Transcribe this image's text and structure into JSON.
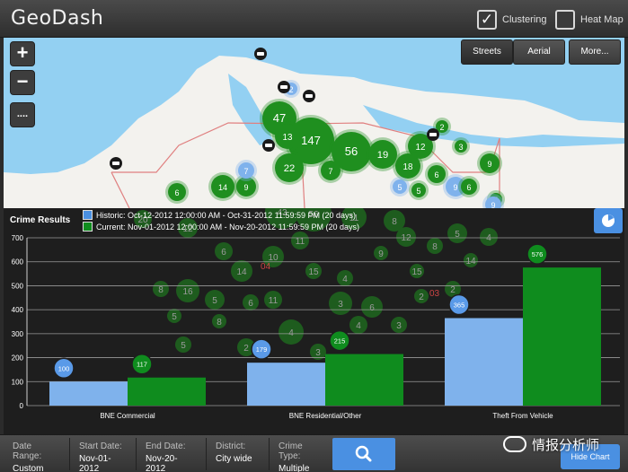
{
  "header": {
    "title": "GeoDash",
    "clustering_label": "Clustering",
    "clustering_checked": true,
    "clustering_mark": "✓",
    "heatmap_label": "Heat Map",
    "heatmap_checked": false
  },
  "map": {
    "zoom_in": "+",
    "zoom_out": "−",
    "measure": "....",
    "map_types": [
      "Streets",
      "Aerial",
      "More..."
    ],
    "active_map_type": "Streets",
    "district_labels": [
      "04",
      "03"
    ],
    "colors": {
      "water": "#93d0f2",
      "land": "#f3f2ee",
      "cluster_green": "#1f8f1f",
      "cluster_blue": "#7fb2ec",
      "district_border": "#e08080"
    },
    "clusters": [
      {
        "label": "47",
        "c": "g"
      },
      {
        "label": "147",
        "c": "g"
      },
      {
        "label": "13",
        "c": "g"
      },
      {
        "label": "56",
        "c": "g"
      },
      {
        "label": "19",
        "c": "g"
      },
      {
        "label": "12",
        "c": "g"
      },
      {
        "label": "22",
        "c": "g"
      },
      {
        "label": "7",
        "c": "g"
      },
      {
        "label": "18",
        "c": "g"
      },
      {
        "label": "14",
        "c": "g"
      },
      {
        "label": "9",
        "c": "g"
      },
      {
        "label": "7",
        "c": "b"
      },
      {
        "label": "6",
        "c": "g"
      },
      {
        "label": "6",
        "c": "g"
      },
      {
        "label": "9",
        "c": "b"
      },
      {
        "label": "9",
        "c": "g"
      },
      {
        "label": "6",
        "c": "g"
      },
      {
        "label": "5",
        "c": "g"
      },
      {
        "label": "4",
        "c": "g"
      },
      {
        "label": "2",
        "c": "g"
      },
      {
        "label": "3",
        "c": "g"
      },
      {
        "label": "5",
        "c": "b"
      },
      {
        "label": "2",
        "c": "b"
      },
      {
        "label": "9",
        "c": "b"
      },
      {
        "label": "20",
        "c": "g"
      },
      {
        "label": "12",
        "c": "g"
      },
      {
        "label": "43",
        "c": "g"
      },
      {
        "label": "56",
        "c": "g"
      },
      {
        "label": "11",
        "c": "g"
      },
      {
        "label": "8",
        "c": "g"
      },
      {
        "label": "5",
        "c": "g"
      },
      {
        "label": "6",
        "c": "g"
      },
      {
        "label": "10",
        "c": "g"
      },
      {
        "label": "11",
        "c": "g"
      },
      {
        "label": "14",
        "c": "g"
      },
      {
        "label": "16",
        "c": "g"
      },
      {
        "label": "8",
        "c": "g"
      },
      {
        "label": "5",
        "c": "g"
      },
      {
        "label": "11",
        "c": "g"
      },
      {
        "label": "15",
        "c": "g"
      },
      {
        "label": "4",
        "c": "g"
      },
      {
        "label": "6",
        "c": "g"
      },
      {
        "label": "3",
        "c": "g"
      },
      {
        "label": "3",
        "c": "g"
      },
      {
        "label": "4",
        "c": "g"
      },
      {
        "label": "2",
        "c": "g"
      },
      {
        "label": "5",
        "c": "g"
      },
      {
        "label": "15",
        "c": "g"
      },
      {
        "label": "8",
        "c": "g"
      },
      {
        "label": "4",
        "c": "g"
      },
      {
        "label": "2",
        "c": "g"
      },
      {
        "label": "3",
        "c": "g"
      },
      {
        "label": "8",
        "c": "g"
      },
      {
        "label": "9",
        "c": "g"
      },
      {
        "label": "2",
        "c": "g"
      },
      {
        "label": "6",
        "c": "g"
      },
      {
        "label": "4",
        "c": "g"
      },
      {
        "label": "12",
        "c": "g"
      },
      {
        "label": "14",
        "c": "g"
      },
      {
        "label": "5",
        "c": "g"
      },
      {
        "label": "3",
        "c": "g"
      }
    ]
  },
  "results": {
    "title": "Crime Results",
    "legend": [
      {
        "text": "Historic:  Oct-12-2012 12:00:00 AM - Oct-31-2012 11:59:59 PM (20 days)",
        "color": "#4a90e2"
      },
      {
        "text": "Current:  Nov-01-2012 12:00:00 AM - Nov-20-2012 11:59:59 PM (20 days)",
        "color": "#0f8c1e"
      }
    ],
    "pie_icon": "pie-chart-icon"
  },
  "chart_data": {
    "type": "bar",
    "categories": [
      "BNE Commercial",
      "BNE Residential/Other",
      "Theft From Vehicle"
    ],
    "series": [
      {
        "name": "Historic",
        "values": [
          100,
          179,
          365
        ],
        "color": "#7fb2ec"
      },
      {
        "name": "Current",
        "values": [
          117,
          215,
          576
        ],
        "color": "#0f8c1e"
      }
    ],
    "yticks": [
      0,
      100,
      200,
      300,
      400,
      500,
      600,
      700
    ],
    "ylim": [
      0,
      700
    ],
    "grid": true,
    "title": "",
    "xlabel": "",
    "ylabel": ""
  },
  "footer": {
    "filters": [
      {
        "label": "Date Range:",
        "value": "Custom"
      },
      {
        "label": "Start Date:",
        "value": "Nov-01-2012"
      },
      {
        "label": "End Date:",
        "value": "Nov-20-2012"
      },
      {
        "label": "District:",
        "value": "City wide"
      },
      {
        "label": "Crime Type:",
        "value": "Multiple"
      }
    ],
    "search_icon": "search-icon",
    "hide_chart": "Hide Chart"
  },
  "watermark": {
    "text": "情报分析师"
  }
}
